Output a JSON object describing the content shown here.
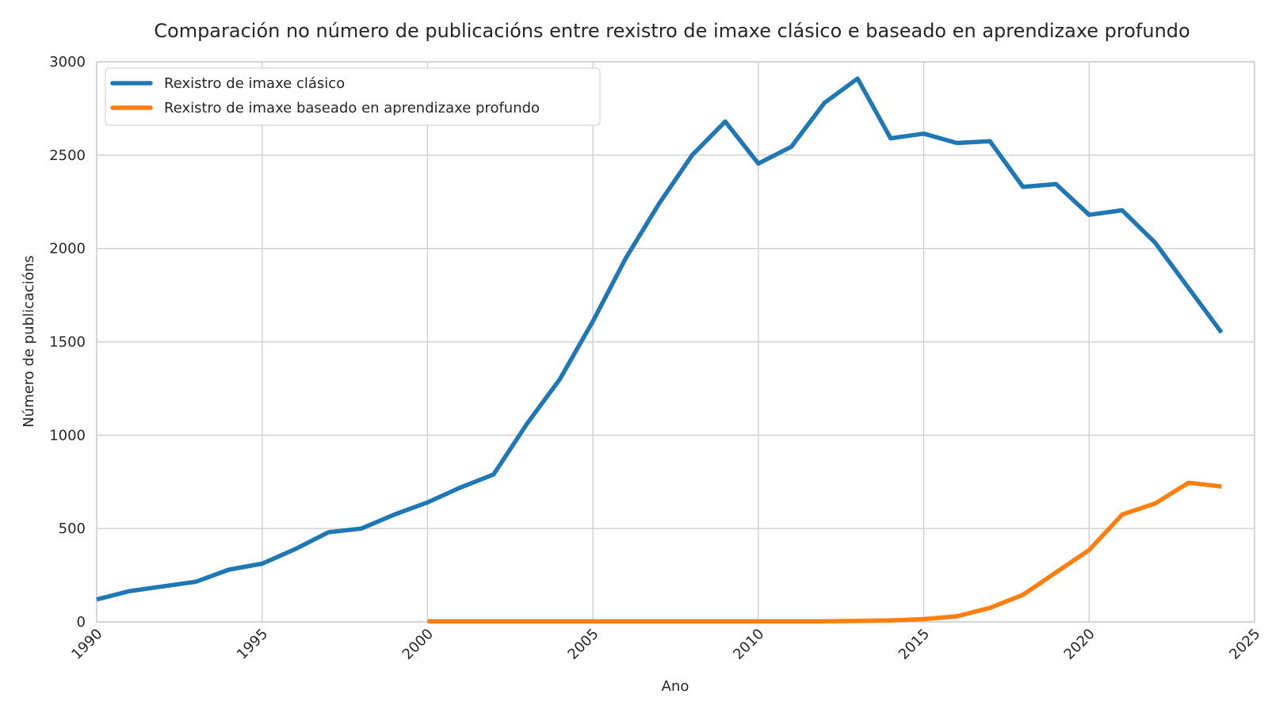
{
  "chart_data": {
    "type": "line",
    "title": "Comparación no número de publicacións entre rexistro de imaxe clásico e baseado en aprendizaxe profundo",
    "xlabel": "Ano",
    "ylabel": "Número de publicacións",
    "xlim": [
      1990,
      2025
    ],
    "ylim": [
      0,
      3000
    ],
    "xticks": [
      1990,
      1995,
      2000,
      2005,
      2010,
      2015,
      2020,
      2025
    ],
    "yticks": [
      0,
      500,
      1000,
      1500,
      2000,
      2500,
      3000
    ],
    "grid": true,
    "legend_position": "top-left",
    "series": [
      {
        "name": "Rexistro de imaxe clásico",
        "color": "#1f77b4",
        "x": [
          1990,
          1991,
          1992,
          1993,
          1994,
          1995,
          1996,
          1997,
          1998,
          1999,
          2000,
          2001,
          2002,
          2003,
          2004,
          2005,
          2006,
          2007,
          2008,
          2009,
          2010,
          2011,
          2012,
          2013,
          2014,
          2015,
          2016,
          2017,
          2018,
          2019,
          2020,
          2021,
          2022,
          2023,
          2024
        ],
        "y": [
          120,
          165,
          190,
          215,
          280,
          312,
          390,
          480,
          500,
          575,
          640,
          720,
          790,
          1060,
          1300,
          1610,
          1950,
          2240,
          2500,
          2680,
          2455,
          2545,
          2780,
          2910,
          2590,
          2615,
          2565,
          2575,
          2330,
          2345,
          2180,
          2205,
          2030,
          1790,
          1550
        ]
      },
      {
        "name": "Rexistro de imaxe baseado en aprendizaxe profundo",
        "color": "#ff7f0e",
        "x": [
          2000,
          2001,
          2002,
          2003,
          2004,
          2005,
          2006,
          2007,
          2008,
          2009,
          2010,
          2011,
          2012,
          2013,
          2014,
          2015,
          2016,
          2017,
          2018,
          2019,
          2020,
          2021,
          2022,
          2023,
          2024
        ],
        "y": [
          3,
          3,
          3,
          3,
          3,
          3,
          3,
          3,
          3,
          3,
          3,
          3,
          3,
          5,
          8,
          15,
          30,
          75,
          145,
          265,
          385,
          575,
          635,
          745,
          725
        ]
      }
    ]
  }
}
